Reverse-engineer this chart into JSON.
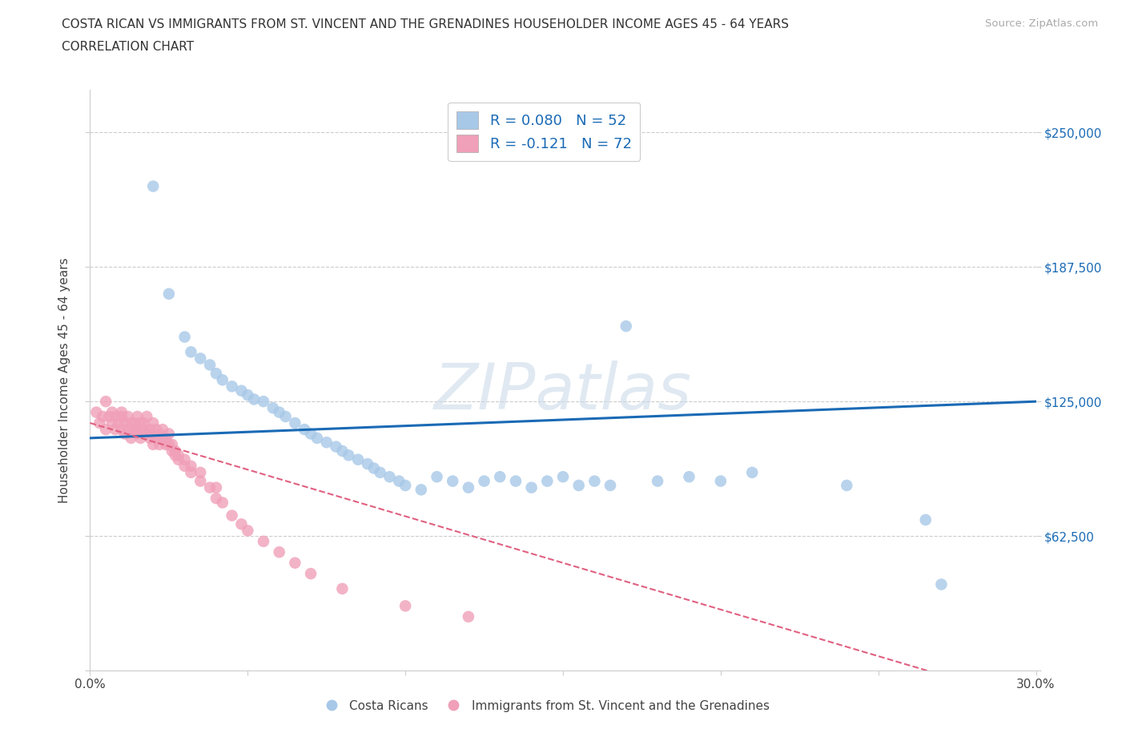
{
  "title_line1": "COSTA RICAN VS IMMIGRANTS FROM ST. VINCENT AND THE GRENADINES HOUSEHOLDER INCOME AGES 45 - 64 YEARS",
  "title_line2": "CORRELATION CHART",
  "source_text": "Source: ZipAtlas.com",
  "ylabel": "Householder Income Ages 45 - 64 years",
  "xlim": [
    0.0,
    0.3
  ],
  "ylim": [
    0,
    270000
  ],
  "yticks": [
    0,
    62500,
    125000,
    187500,
    250000
  ],
  "ytick_labels": [
    "",
    "$62,500",
    "$125,000",
    "$187,500",
    "$250,000"
  ],
  "xticks": [
    0.0,
    0.05,
    0.1,
    0.15,
    0.2,
    0.25,
    0.3
  ],
  "xtick_labels": [
    "0.0%",
    "",
    "",
    "",
    "",
    "",
    "30.0%"
  ],
  "watermark": "ZIPatlas",
  "blue_R": 0.08,
  "blue_N": 52,
  "pink_R": -0.121,
  "pink_N": 72,
  "blue_color": "#a8c8e8",
  "pink_color": "#f0a0b8",
  "blue_line_color": "#1a6ab5",
  "pink_line_color": "#e06080",
  "grid_color": "#cccccc",
  "background_color": "#ffffff",
  "blue_scatter_x": [
    0.02,
    0.025,
    0.03,
    0.032,
    0.035,
    0.038,
    0.04,
    0.042,
    0.045,
    0.048,
    0.05,
    0.052,
    0.055,
    0.058,
    0.06,
    0.062,
    0.065,
    0.068,
    0.07,
    0.072,
    0.075,
    0.078,
    0.08,
    0.082,
    0.085,
    0.088,
    0.09,
    0.092,
    0.095,
    0.098,
    0.1,
    0.105,
    0.11,
    0.115,
    0.12,
    0.125,
    0.13,
    0.135,
    0.14,
    0.145,
    0.15,
    0.155,
    0.16,
    0.165,
    0.17,
    0.18,
    0.19,
    0.2,
    0.21,
    0.24,
    0.265,
    0.27
  ],
  "blue_scatter_y": [
    225000,
    175000,
    155000,
    148000,
    145000,
    142000,
    138000,
    135000,
    132000,
    130000,
    128000,
    126000,
    125000,
    122000,
    120000,
    118000,
    115000,
    112000,
    110000,
    108000,
    106000,
    104000,
    102000,
    100000,
    98000,
    96000,
    94000,
    92000,
    90000,
    88000,
    86000,
    84000,
    90000,
    88000,
    85000,
    88000,
    90000,
    88000,
    85000,
    88000,
    90000,
    86000,
    88000,
    86000,
    160000,
    88000,
    90000,
    88000,
    92000,
    86000,
    70000,
    40000
  ],
  "pink_scatter_x": [
    0.002,
    0.003,
    0.004,
    0.005,
    0.005,
    0.006,
    0.007,
    0.007,
    0.008,
    0.008,
    0.009,
    0.01,
    0.01,
    0.01,
    0.011,
    0.011,
    0.012,
    0.012,
    0.013,
    0.013,
    0.014,
    0.014,
    0.015,
    0.015,
    0.015,
    0.016,
    0.016,
    0.017,
    0.017,
    0.018,
    0.018,
    0.019,
    0.019,
    0.02,
    0.02,
    0.02,
    0.021,
    0.021,
    0.022,
    0.022,
    0.023,
    0.023,
    0.024,
    0.024,
    0.025,
    0.025,
    0.026,
    0.026,
    0.027,
    0.027,
    0.028,
    0.028,
    0.03,
    0.03,
    0.032,
    0.032,
    0.035,
    0.035,
    0.038,
    0.04,
    0.04,
    0.042,
    0.045,
    0.048,
    0.05,
    0.055,
    0.06,
    0.065,
    0.07,
    0.08,
    0.1,
    0.12
  ],
  "pink_scatter_y": [
    120000,
    115000,
    118000,
    112000,
    125000,
    118000,
    115000,
    120000,
    112000,
    118000,
    115000,
    118000,
    112000,
    120000,
    115000,
    110000,
    118000,
    112000,
    115000,
    108000,
    112000,
    115000,
    110000,
    118000,
    112000,
    115000,
    108000,
    112000,
    115000,
    110000,
    118000,
    112000,
    108000,
    115000,
    110000,
    105000,
    112000,
    108000,
    110000,
    105000,
    108000,
    112000,
    105000,
    108000,
    105000,
    110000,
    102000,
    105000,
    100000,
    102000,
    98000,
    100000,
    95000,
    98000,
    92000,
    95000,
    88000,
    92000,
    85000,
    80000,
    85000,
    78000,
    72000,
    68000,
    65000,
    60000,
    55000,
    50000,
    45000,
    38000,
    30000,
    25000
  ]
}
